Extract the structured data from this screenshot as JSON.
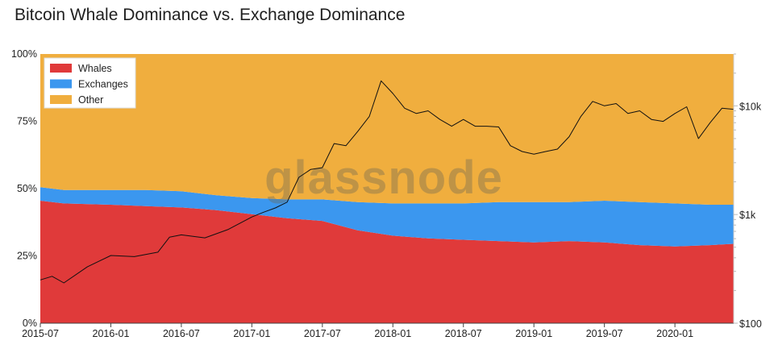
{
  "chart_data": {
    "type": "area",
    "title": "Bitcoin Whale Dominance vs. Exchange Dominance",
    "watermark": "glassnode",
    "x_ticks": [
      "2015-07",
      "2016-01",
      "2016-07",
      "2017-01",
      "2017-07",
      "2018-01",
      "2018-07",
      "2019-01",
      "2019-07",
      "2020-01"
    ],
    "y_left_ticks": [
      "0%",
      "25%",
      "50%",
      "75%",
      "100%"
    ],
    "y_left_range": [
      0,
      100
    ],
    "y_right_ticks": [
      "$100",
      "$1k",
      "$10k"
    ],
    "y_right_scale": "log",
    "y_right_range": [
      100,
      30000
    ],
    "x_range": [
      "2015-07",
      "2020-06"
    ],
    "legend": {
      "placement": "top-left",
      "items": [
        {
          "label": "Whales",
          "color": "#e03a3a"
        },
        {
          "label": "Exchanges",
          "color": "#3b97ef"
        },
        {
          "label": "Other",
          "color": "#f0ae3e"
        }
      ]
    },
    "series": [
      {
        "name": "Whales",
        "stacked": true,
        "color": "#e03a3a",
        "x": [
          "2015-07",
          "2015-09",
          "2016-01",
          "2016-04",
          "2016-07",
          "2016-10",
          "2017-01",
          "2017-04",
          "2017-07",
          "2017-10",
          "2018-01",
          "2018-04",
          "2018-07",
          "2018-10",
          "2019-01",
          "2019-04",
          "2019-07",
          "2019-10",
          "2020-01",
          "2020-04",
          "2020-06"
        ],
        "values": [
          45.5,
          44.5,
          44.0,
          43.5,
          43.0,
          42.0,
          40.5,
          39.0,
          38.0,
          34.5,
          32.5,
          31.5,
          31.0,
          30.5,
          30.0,
          30.5,
          30.0,
          29.0,
          28.5,
          29.0,
          29.5
        ]
      },
      {
        "name": "Exchanges",
        "stacked": true,
        "color": "#3b97ef",
        "x": [
          "2015-07",
          "2015-09",
          "2016-01",
          "2016-04",
          "2016-07",
          "2016-10",
          "2017-01",
          "2017-04",
          "2017-07",
          "2017-10",
          "2018-01",
          "2018-04",
          "2018-07",
          "2018-10",
          "2019-01",
          "2019-04",
          "2019-07",
          "2019-10",
          "2020-01",
          "2020-04",
          "2020-06"
        ],
        "values": [
          5.0,
          5.0,
          5.5,
          6.0,
          6.0,
          5.5,
          6.0,
          7.0,
          8.0,
          10.5,
          12.0,
          13.0,
          13.5,
          14.5,
          15.0,
          14.5,
          15.5,
          16.0,
          16.0,
          15.0,
          14.5
        ]
      },
      {
        "name": "Other",
        "stacked": true,
        "color": "#f0ae3e",
        "x": [
          "2015-07",
          "2015-09",
          "2016-01",
          "2016-04",
          "2016-07",
          "2016-10",
          "2017-01",
          "2017-04",
          "2017-07",
          "2017-10",
          "2018-01",
          "2018-04",
          "2018-07",
          "2018-10",
          "2019-01",
          "2019-04",
          "2019-07",
          "2019-10",
          "2020-01",
          "2020-04",
          "2020-06"
        ],
        "values": [
          49.5,
          50.5,
          50.5,
          50.5,
          51.0,
          52.5,
          53.5,
          54.0,
          54.0,
          55.0,
          55.5,
          55.5,
          55.5,
          55.0,
          55.0,
          55.0,
          54.5,
          55.0,
          55.5,
          56.0,
          56.0
        ]
      },
      {
        "name": "Price",
        "axis": "right",
        "type": "line",
        "color": "#111111",
        "x": [
          "2015-07",
          "2015-08",
          "2015-09",
          "2015-11",
          "2016-01",
          "2016-03",
          "2016-05",
          "2016-06",
          "2016-07",
          "2016-09",
          "2016-11",
          "2017-01",
          "2017-02",
          "2017-03",
          "2017-04",
          "2017-05",
          "2017-06",
          "2017-07",
          "2017-08",
          "2017-09",
          "2017-10",
          "2017-11",
          "2017-12",
          "2018-01",
          "2018-02",
          "2018-03",
          "2018-04",
          "2018-05",
          "2018-06",
          "2018-07",
          "2018-08",
          "2018-09",
          "2018-10",
          "2018-11",
          "2018-12",
          "2019-01",
          "2019-02",
          "2019-03",
          "2019-04",
          "2019-05",
          "2019-06",
          "2019-07",
          "2019-08",
          "2019-09",
          "2019-10",
          "2019-11",
          "2019-12",
          "2020-01",
          "2020-02",
          "2020-03",
          "2020-04",
          "2020-05",
          "2020-06"
        ],
        "values": [
          250,
          270,
          235,
          330,
          420,
          410,
          450,
          620,
          650,
          610,
          730,
          950,
          1050,
          1150,
          1300,
          2200,
          2600,
          2700,
          4500,
          4300,
          5800,
          8000,
          17000,
          13000,
          9500,
          8500,
          9000,
          7500,
          6500,
          7500,
          6500,
          6500,
          6400,
          4300,
          3800,
          3600,
          3800,
          4000,
          5200,
          8000,
          11000,
          10000,
          10500,
          8500,
          9000,
          7500,
          7200,
          8500,
          9800,
          5000,
          7000,
          9500,
          9300
        ]
      }
    ]
  }
}
